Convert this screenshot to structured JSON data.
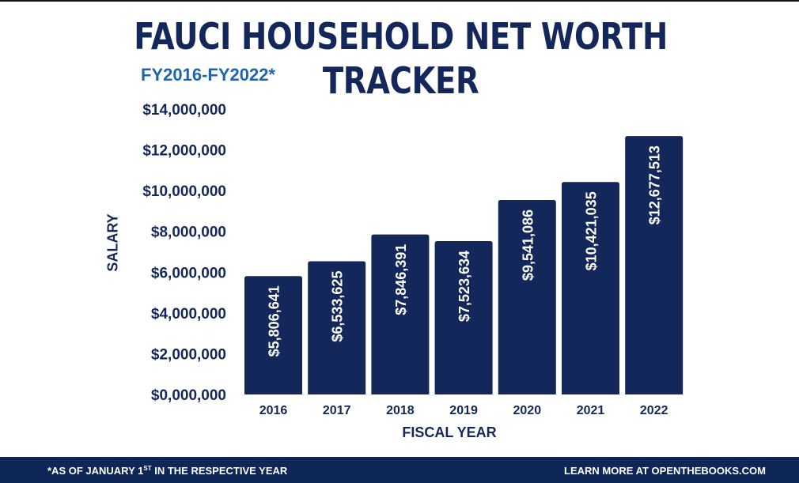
{
  "colors": {
    "bar": "#13275a",
    "title": "#13275a",
    "subtitle": "#1f64b0",
    "footer": "#0f2756"
  },
  "chart_data": {
    "type": "bar",
    "title": "FAUCI HOUSEHOLD NET WORTH TRACKER",
    "subtitle": "FY2016-FY2022*",
    "xlabel": "FISCAL YEAR",
    "ylabel": "SALARY",
    "categories": [
      "2016",
      "2017",
      "2018",
      "2019",
      "2020",
      "2021",
      "2022"
    ],
    "values": [
      5806641,
      6533625,
      7846391,
      7523634,
      9541086,
      10421035,
      12677513
    ],
    "data_labels": [
      "$5,806,641",
      "$6,533,625",
      "$7,846,391",
      "$7,523,634",
      "$9,541,086",
      "$10,421,035",
      "$12,677,513"
    ],
    "yticks": [
      0,
      2000000,
      4000000,
      6000000,
      8000000,
      10000000,
      12000000,
      14000000
    ],
    "ytick_labels": [
      "$0,000,000",
      "$2,000,000",
      "$4,000,000",
      "$6,000,000",
      "$8,000,000",
      "$10,000,000",
      "$12,000,000",
      "$14,000,000"
    ],
    "ylim": [
      0,
      14000000
    ],
    "grid": false,
    "legend": "none"
  },
  "footer": {
    "left_before": "*AS OF JANUARY 1",
    "left_sup": "ST",
    "left_after": " IN THE RESPECTIVE YEAR",
    "right": "LEARN MORE AT OPENTHEBOOKS.COM"
  }
}
